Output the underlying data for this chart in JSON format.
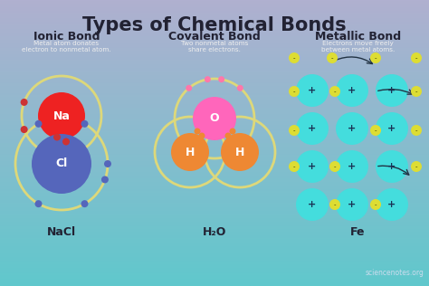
{
  "title": "Types of Chemical Bonds",
  "title_fontsize": 15,
  "bg_top": "#b0b0d0",
  "bg_bottom": "#60c8cc",
  "columns": [
    {
      "label": "Ionic Bond",
      "desc": "Metal atom donates\nelectron to nonmetal atom.",
      "formula": "NaCl",
      "fx": 0.155
    },
    {
      "label": "Covalent Bond",
      "desc": "Two nonmetal atoms\nshare electrons.",
      "formula": "H₂O",
      "fx": 0.5
    },
    {
      "label": "Metallic Bond",
      "desc": "Electrons move freely\nbetween metal atoms.",
      "formula": "Fe",
      "fx": 0.83
    }
  ],
  "orbit_color": "#ddd87a",
  "na_color": "#ee2222",
  "cl_color": "#5566bb",
  "o_color": "#ff66bb",
  "h_color": "#ee8833",
  "electron_red": "#cc3333",
  "electron_blue": "#5566bb",
  "electron_pink": "#ff77aa",
  "electron_orange": "#ee8833",
  "teal_color": "#44dddd",
  "yellow_dot": "#dddd33",
  "text_dark": "#222233",
  "text_white": "#ffffff",
  "watermark": "sciencenotes.org"
}
